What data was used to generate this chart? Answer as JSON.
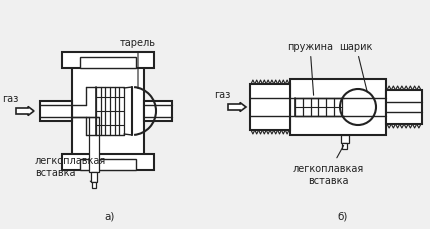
{
  "bg_color": "#f0f0f0",
  "line_color": "#222222",
  "fill_color": "#ffffff",
  "labels": {
    "tarel": "тарель",
    "pruzhina": "пружина",
    "sharik": "шарик",
    "legkopl_a": "легкоплавкая\nвставка",
    "legkopl_b": "легкоплавкая\nвставка",
    "gaz_a": "газ",
    "gaz_b": "газ",
    "a": "а)",
    "b": "б)"
  },
  "fontsize": 7.0
}
